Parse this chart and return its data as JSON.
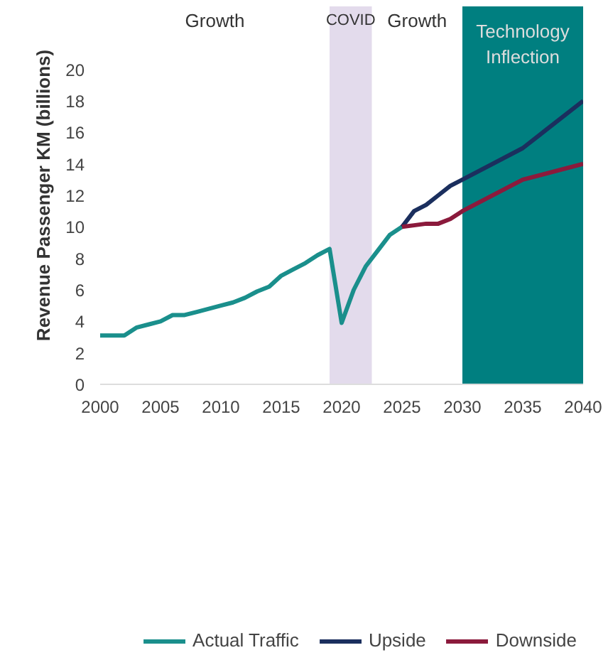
{
  "chart_data": {
    "type": "line",
    "ylabel": "Revenue Passenger KM (billions)",
    "series": [
      {
        "name": "Actual Traffic",
        "color": "#1a8f8c",
        "x": [
          2000,
          2001,
          2002,
          2003,
          2004,
          2005,
          2006,
          2007,
          2008,
          2009,
          2010,
          2011,
          2012,
          2013,
          2014,
          2015,
          2016,
          2017,
          2018,
          2019,
          2020,
          2021,
          2022,
          2023,
          2024,
          2025
        ],
        "values": [
          3.1,
          3.1,
          3.1,
          3.6,
          3.8,
          4.0,
          4.4,
          4.4,
          4.6,
          4.8,
          5.0,
          5.2,
          5.5,
          5.9,
          6.2,
          6.9,
          7.3,
          7.7,
          8.2,
          8.6,
          3.9,
          6.0,
          7.5,
          8.5,
          9.5,
          10.0
        ]
      },
      {
        "name": "Upside",
        "color": "#1b2f5e",
        "x": [
          2025,
          2026,
          2027,
          2028,
          2029,
          2030,
          2035,
          2040
        ],
        "values": [
          10.0,
          11.0,
          11.4,
          12.0,
          12.6,
          13.0,
          15.0,
          18.0
        ]
      },
      {
        "name": "Downside",
        "color": "#8b1a3c",
        "x": [
          2025,
          2026,
          2027,
          2028,
          2029,
          2030,
          2035,
          2040
        ],
        "values": [
          10.0,
          10.1,
          10.2,
          10.2,
          10.5,
          11.0,
          13.0,
          14.0
        ]
      }
    ],
    "xlim": [
      2000,
      2040
    ],
    "xticks": [
      2000,
      2005,
      2010,
      2015,
      2020,
      2025,
      2030,
      2035,
      2040
    ],
    "ylim": [
      0,
      20
    ],
    "yticks": [
      0,
      2,
      4,
      6,
      8,
      10,
      12,
      14,
      16,
      18,
      20
    ],
    "bands": [
      {
        "axis": "x",
        "from": 2019,
        "to": 2022.5,
        "label": "COVID",
        "color": "#e3dbec"
      },
      {
        "axis": "x",
        "from": 2030,
        "to": 2040,
        "label": "Technology Inflection",
        "color": "#007f80"
      }
    ],
    "annotations": [
      "Growth",
      "Growth"
    ],
    "grid": false,
    "legend": "bottom",
    "line_style": "solid",
    "marker": "none"
  }
}
